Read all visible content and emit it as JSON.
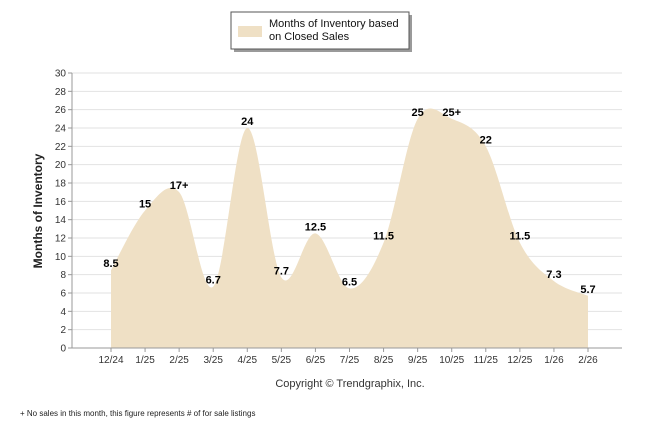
{
  "chart_data": {
    "type": "area",
    "title": "",
    "legend": {
      "label_line1": "Months of Inventory based",
      "label_line2": "on Closed Sales",
      "placement": "top-center"
    },
    "ylabel": "Months of Inventory",
    "xlabel": "",
    "ylim": [
      0,
      30
    ],
    "yticks": [
      "0",
      "2",
      "4",
      "6",
      "8",
      "10",
      "12",
      "14",
      "16",
      "18",
      "20",
      "22",
      "24",
      "26",
      "28",
      "30"
    ],
    "grid": true,
    "fill_color": "#efe0c5",
    "categories": [
      "12/24",
      "1/25",
      "2/25",
      "3/25",
      "4/25",
      "5/25",
      "6/25",
      "7/25",
      "8/25",
      "9/25",
      "10/25",
      "11/25",
      "12/25",
      "1/26",
      "2/26"
    ],
    "values": [
      8.5,
      15,
      17,
      6.7,
      24,
      7.7,
      12.5,
      6.5,
      11.5,
      25,
      25,
      22,
      11.5,
      7.3,
      5.7
    ],
    "labels": [
      "8.5",
      "15",
      "17+",
      "6.7",
      "24",
      "7.7",
      "12.5",
      "6.5",
      "11.5",
      "25",
      "25+",
      "22",
      "11.5",
      "7.3",
      "5.7"
    ],
    "copyright": "Copyright © Trendgraphix, Inc.",
    "footnote": "+ No sales in this month, this figure represents # of for sale listings"
  }
}
